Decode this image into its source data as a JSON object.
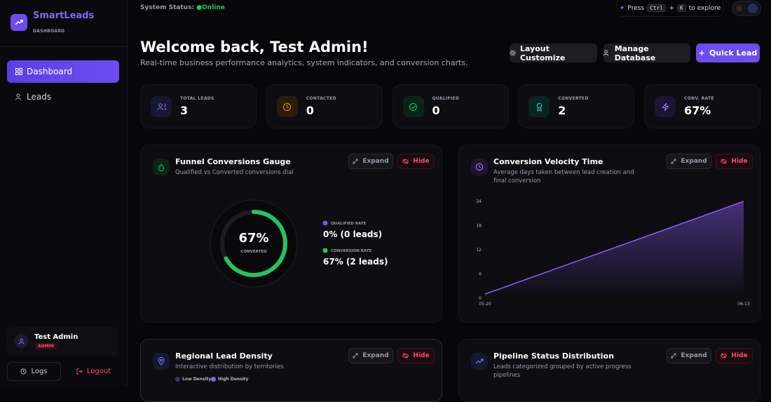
{
  "sidebar": {
    "brand": "SmartLeads",
    "brand_sub": "DASHBOARD",
    "nav": [
      "Dashboard",
      "Leads"
    ],
    "user": {
      "name": "Test Admin",
      "role": "ADMIN"
    },
    "footer_buttons": [
      "Logs",
      "Logout"
    ]
  },
  "topbar": {
    "status_label": "System Status:",
    "status": "Online",
    "shortcut": {
      "press": "Press",
      "key1": "Ctrl",
      "plus": "+",
      "key2": "K",
      "suffix": "to explore"
    }
  },
  "header": {
    "title": "Welcome back, Test Admin!",
    "subtitle": "Real-time business performance analytics, system indicators, and conversion charts.",
    "buttons": [
      "Layout Customize",
      "Manage Database",
      "Quick Lead"
    ]
  },
  "stats": [
    {
      "label": "TOTAL LEADS",
      "value": 3
    },
    {
      "label": "CONTACTED",
      "value": 0
    },
    {
      "label": "QUALIFIED",
      "value": 0
    },
    {
      "label": "CONVERTED",
      "value": 2
    },
    {
      "label": "CONV. RATE",
      "value": "67%"
    }
  ],
  "cards": [
    {
      "title": "Funnel Conversions Gauge",
      "subtitle": "Qualified vs Converted conversions dial",
      "actions": [
        "Expand",
        "Hide"
      ],
      "gauge": {
        "value": 67,
        "label": "67%",
        "caption": "CONVERTED",
        "color": "#22c55e"
      },
      "legend": [
        {
          "label": "QUALIFIED RATE",
          "text": "0% (0 leads)",
          "color": "#6d5ae6"
        },
        {
          "label": "CONVERSION RATE",
          "text": "67% (2 leads)",
          "color": "#22c55e"
        }
      ]
    },
    {
      "title": "Conversion Velocity Time",
      "subtitle": "Average days taken between lead creation and final conversion",
      "actions": [
        "Expand",
        "Hide"
      ],
      "chart": {
        "type": "line",
        "x": [
          "05-20",
          "06-13"
        ],
        "values": [
          1,
          24
        ],
        "ylim": [
          0,
          24
        ],
        "yticks": [
          0,
          6,
          12,
          18,
          24
        ],
        "color": "#8b5cf6"
      }
    },
    {
      "title": "Regional Lead Density",
      "subtitle": "Interactive distribution by territories",
      "actions": [
        "Expand",
        "Hide"
      ],
      "legend": [
        {
          "label": "Low Density",
          "color": "#3b3564"
        },
        {
          "label": "High Density",
          "color": "#7c6cf0"
        }
      ]
    },
    {
      "title": "Pipeline Status Distribution",
      "subtitle": "Leads categorized grouped by active progress pipelines",
      "actions": [
        "Expand",
        "Hide"
      ]
    }
  ]
}
